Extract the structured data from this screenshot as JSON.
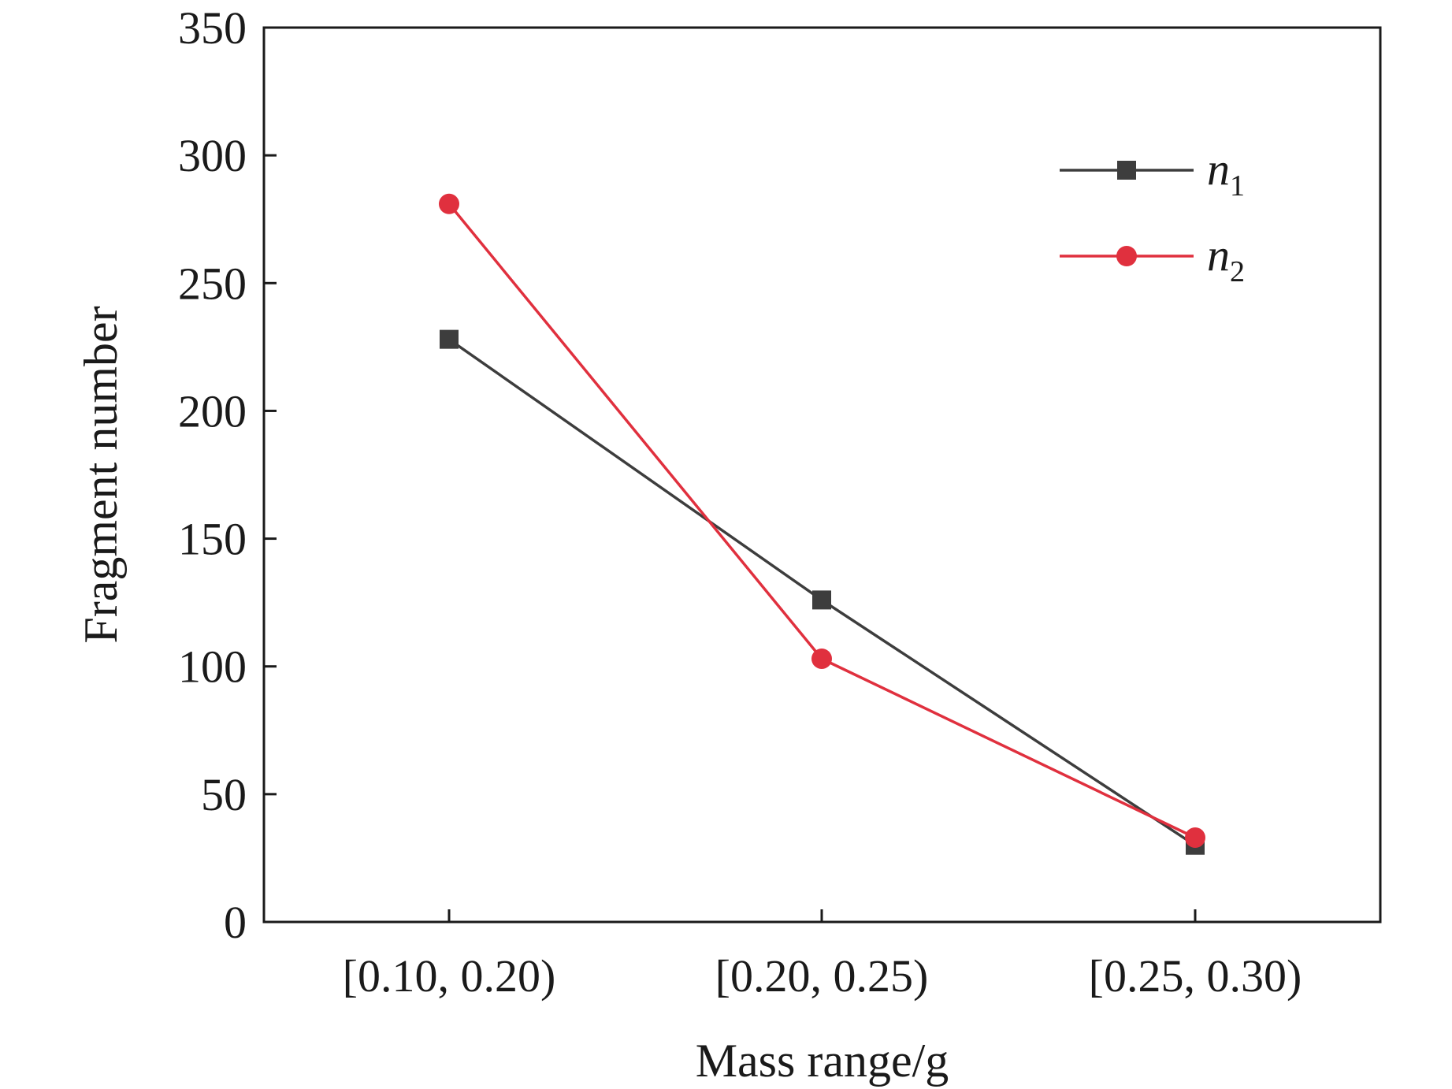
{
  "chart_data": {
    "type": "line",
    "title": "",
    "xlabel": "Mass range/g",
    "ylabel": "Fragment number",
    "categories": [
      "[0.10, 0.20)",
      "[0.20, 0.25)",
      "[0.25, 0.30)"
    ],
    "ylim": [
      0,
      350
    ],
    "yticks": [
      0,
      50,
      100,
      150,
      200,
      250,
      300,
      350
    ],
    "ytick_labels": [
      "0",
      "50",
      "100",
      "150",
      "200",
      "250",
      "300",
      "350"
    ],
    "grid": false,
    "legend_position": "top-right",
    "series": [
      {
        "name": "n",
        "subscript": "1",
        "color": "#3d3d3d",
        "marker": "square",
        "values": [
          228,
          126,
          30
        ]
      },
      {
        "name": "n",
        "subscript": "2",
        "color": "#e0303e",
        "marker": "circle",
        "values": [
          281,
          103,
          33
        ]
      }
    ]
  }
}
